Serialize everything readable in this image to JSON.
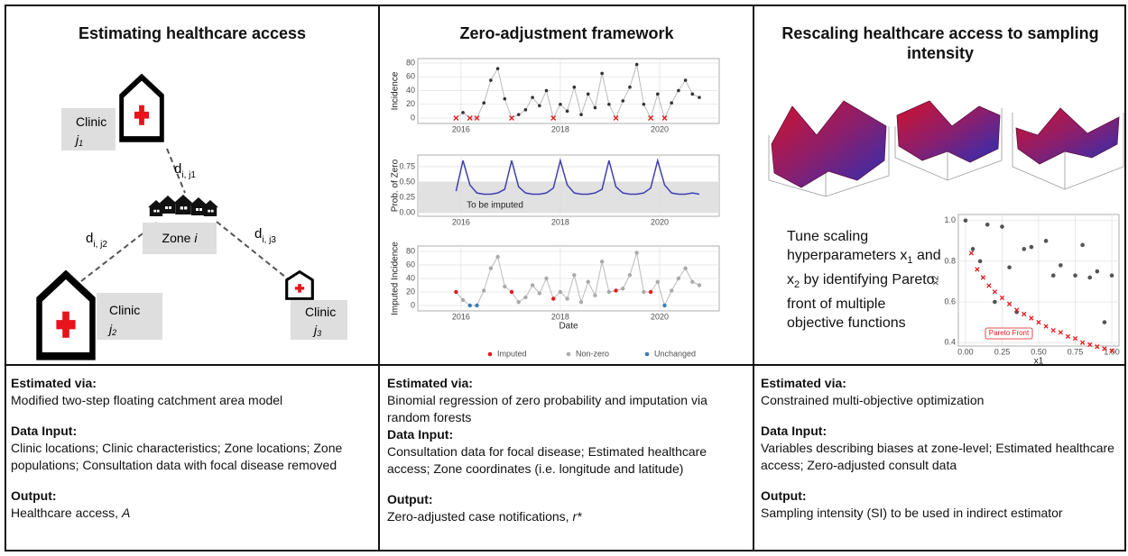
{
  "panels": [
    {
      "title": "Estimating healthcare access",
      "diagram": {
        "clinic_1": {
          "name": "Clinic",
          "id": "j",
          "sub": "1"
        },
        "clinic_2": {
          "name": "Clinic",
          "id": "j",
          "sub": "2"
        },
        "clinic_3": {
          "name": "Clinic",
          "id": "j",
          "sub": "3"
        },
        "zone": {
          "name": "Zone",
          "id": "i"
        },
        "distances": [
          {
            "d": "d",
            "sub": "i, j1"
          },
          {
            "d": "d",
            "sub": "i, j2"
          },
          {
            "d": "d",
            "sub": "i, j3"
          }
        ]
      },
      "details": [
        {
          "heading": "Estimated via:",
          "text": "Modified two-step floating catchment area model"
        },
        {
          "heading": "Data Input:",
          "text": "Clinic locations; Clinic characteristics; Zone locations; Zone populations; Consultation data with focal disease removed"
        },
        {
          "heading": "Output:",
          "text": "Healthcare access,",
          "symbol": "A"
        }
      ]
    },
    {
      "title": "Zero-adjustment framework",
      "charts": [
        {
          "type": "line",
          "y_label": "Incidence",
          "color": "#333333",
          "zero_color": "#e41a1c",
          "line_color": "#bbbbbb",
          "x": [
            2015.9,
            2016.04,
            2016.18,
            2016.32,
            2016.46,
            2016.6,
            2016.74,
            2016.88,
            2017.02,
            2017.16,
            2017.3,
            2017.44,
            2017.58,
            2017.72,
            2017.86,
            2018.0,
            2018.14,
            2018.28,
            2018.42,
            2018.56,
            2018.7,
            2018.84,
            2018.98,
            2019.12,
            2019.26,
            2019.4,
            2019.54,
            2019.68,
            2019.82,
            2019.96,
            2020.1,
            2020.24,
            2020.38,
            2020.52,
            2020.66,
            2020.8
          ],
          "values": [
            0,
            8,
            0,
            0,
            22,
            55,
            72,
            28,
            0,
            5,
            12,
            30,
            18,
            40,
            0,
            20,
            10,
            45,
            5,
            35,
            15,
            65,
            20,
            0,
            25,
            45,
            78,
            20,
            0,
            35,
            0,
            22,
            40,
            55,
            35,
            30
          ],
          "xlim": [
            2015.13,
            2021.2
          ],
          "ylim": [
            -7.9,
            86.6
          ],
          "xticks": [
            2016,
            2018,
            2020
          ],
          "yticks": [
            0,
            20,
            40,
            60,
            80
          ],
          "grid": true
        },
        {
          "type": "line",
          "y_label": "Prob. of Zero",
          "color": "#3f3fb0",
          "annotation": "To be imputed",
          "band": [
            0,
            0.5
          ],
          "band_color": "#dcdcdc",
          "x": [
            2015.9,
            2016.04,
            2016.18,
            2016.32,
            2016.46,
            2016.6,
            2016.74,
            2016.88,
            2017.02,
            2017.16,
            2017.3,
            2017.44,
            2017.58,
            2017.72,
            2017.86,
            2018.0,
            2018.14,
            2018.28,
            2018.42,
            2018.56,
            2018.7,
            2018.84,
            2018.98,
            2019.12,
            2019.26,
            2019.4,
            2019.54,
            2019.68,
            2019.82,
            2019.96,
            2020.1,
            2020.24,
            2020.38,
            2020.52,
            2020.66,
            2020.8
          ],
          "values": [
            0.35,
            0.85,
            0.45,
            0.32,
            0.3,
            0.3,
            0.32,
            0.38,
            0.85,
            0.42,
            0.32,
            0.3,
            0.3,
            0.32,
            0.4,
            0.85,
            0.45,
            0.32,
            0.3,
            0.3,
            0.32,
            0.38,
            0.85,
            0.42,
            0.32,
            0.3,
            0.3,
            0.32,
            0.4,
            0.85,
            0.45,
            0.32,
            0.3,
            0.3,
            0.32,
            0.3
          ],
          "xlim": [
            2015.13,
            2021.2
          ],
          "ylim": [
            -0.06,
            0.94
          ],
          "xticks": [
            2016,
            2018,
            2020
          ],
          "yticks": [
            {
              "value": 0,
              "label": "0.00"
            },
            {
              "value": 0.25,
              "label": "0.25"
            },
            {
              "value": 0.5,
              "label": "0.50"
            },
            {
              "value": 0.75,
              "label": "0.75"
            }
          ],
          "grid": true
        },
        {
          "type": "line",
          "y_label": "Imputed Incidence",
          "x_label": "Date",
          "line_color": "#bbbbbb",
          "legend": "bottom",
          "x": [
            2015.9,
            2016.04,
            2016.18,
            2016.32,
            2016.46,
            2016.6,
            2016.74,
            2016.88,
            2017.02,
            2017.16,
            2017.3,
            2017.44,
            2017.58,
            2017.72,
            2017.86,
            2018.0,
            2018.14,
            2018.28,
            2018.42,
            2018.56,
            2018.7,
            2018.84,
            2018.98,
            2019.12,
            2019.26,
            2019.4,
            2019.54,
            2019.68,
            2019.82,
            2019.96,
            2020.1,
            2020.24,
            2020.38,
            2020.52,
            2020.66,
            2020.8
          ],
          "series": [
            {
              "name": "Imputed",
              "color": "#e41a1c",
              "values": [
                20,
                null,
                null,
                null,
                null,
                null,
                null,
                null,
                20,
                null,
                null,
                null,
                null,
                null,
                10,
                null,
                null,
                null,
                null,
                null,
                null,
                null,
                null,
                22,
                null,
                null,
                null,
                null,
                20,
                null,
                null,
                null,
                null,
                null,
                null,
                null
              ]
            },
            {
              "name": "Non-zero",
              "color": "#aaaaaa",
              "values": [
                null,
                8,
                null,
                null,
                22,
                55,
                72,
                28,
                null,
                5,
                12,
                30,
                18,
                40,
                null,
                20,
                10,
                45,
                5,
                35,
                15,
                65,
                20,
                null,
                25,
                45,
                78,
                20,
                null,
                35,
                null,
                22,
                40,
                55,
                35,
                30
              ]
            },
            {
              "name": "Unchanged",
              "color": "#377eb8",
              "values": [
                null,
                null,
                0,
                0,
                null,
                null,
                null,
                null,
                null,
                null,
                null,
                null,
                null,
                null,
                null,
                null,
                null,
                null,
                null,
                null,
                null,
                null,
                null,
                null,
                null,
                null,
                null,
                null,
                null,
                null,
                0,
                null,
                null,
                null,
                null,
                null
              ]
            }
          ],
          "xlim": [
            2015.13,
            2021.2
          ],
          "ylim": [
            -8,
            88
          ],
          "xticks": [
            2016,
            2018,
            2020
          ],
          "yticks": [
            0,
            20,
            40,
            60,
            80
          ],
          "grid": true
        }
      ],
      "details": [
        {
          "heading": "Estimated via:",
          "text": "Binomial regression of zero probability and imputation via random forests"
        },
        {
          "heading": "Data Input:",
          "text": "Consultation data for focal disease; Estimated healthcare access; Zone coordinates (i.e. longitude and latitude)"
        },
        {
          "heading": "Output:",
          "text": "Zero-adjusted case notifications,",
          "symbol": "r*"
        }
      ]
    },
    {
      "title": "Rescaling healthcare access to sampling intensity",
      "tune_text": {
        "pre": "Tune scaling hyperparameters x",
        "sub_1": "1",
        "mid": "and x",
        "sub_2": "2",
        "post": "by identifying Pareto front of multiple objective functions"
      },
      "chart_data": {
        "type": "scatter",
        "x_label": "x1",
        "y_label": "x2",
        "annotation": "Pareto Front",
        "series": [
          {
            "marker": "dot",
            "color": "#555555",
            "x": [
              0,
              0.05,
              0.1,
              0.15,
              0.25,
              0.3,
              0.4,
              0.45,
              0.55,
              0.6,
              0.65,
              0.75,
              0.8,
              0.85,
              0.9,
              0.95,
              1.0,
              0.35,
              0.2
            ],
            "values": [
              1.0,
              0.86,
              0.8,
              0.98,
              0.97,
              0.77,
              0.86,
              0.87,
              0.9,
              0.73,
              0.78,
              0.73,
              0.88,
              0.72,
              0.75,
              0.5,
              0.73,
              0.55,
              0.6
            ]
          },
          {
            "marker": "x",
            "color": "#e41a1c",
            "x": [
              0.04,
              0.08,
              0.12,
              0.16,
              0.2,
              0.25,
              0.3,
              0.35,
              0.4,
              0.45,
              0.5,
              0.55,
              0.6,
              0.65,
              0.7,
              0.75,
              0.8,
              0.85,
              0.9,
              0.95,
              1.0
            ],
            "values": [
              0.84,
              0.76,
              0.72,
              0.68,
              0.65,
              0.62,
              0.59,
              0.56,
              0.54,
              0.52,
              0.5,
              0.48,
              0.46,
              0.45,
              0.43,
              0.42,
              0.4,
              0.39,
              0.38,
              0.37,
              0.36
            ]
          }
        ],
        "xlim": [
          -0.049,
          1.049
        ],
        "ylim": [
          0.383,
          1.03
        ],
        "xticks": [
          {
            "value": 0,
            "label": "0.00"
          },
          {
            "value": 0.25,
            "label": "0.25"
          },
          {
            "value": 0.5,
            "label": "0.50"
          },
          {
            "value": 0.75,
            "label": "0.75"
          },
          {
            "value": 1,
            "label": "1.00"
          }
        ],
        "yticks": [
          0.4,
          0.6,
          0.8,
          {
            "value": 1,
            "label": "1.0"
          }
        ],
        "grid": true
      },
      "details": [
        {
          "heading": "Estimated via:",
          "text": "Constrained multi-objective optimization"
        },
        {
          "heading": "Data Input:",
          "text": "Variables describing biases at zone-level; Estimated healthcare access; Zero-adjusted consult data"
        },
        {
          "heading": "Output:",
          "text": "Sampling intensity (SI) to be used in indirect estimator"
        }
      ]
    }
  ]
}
